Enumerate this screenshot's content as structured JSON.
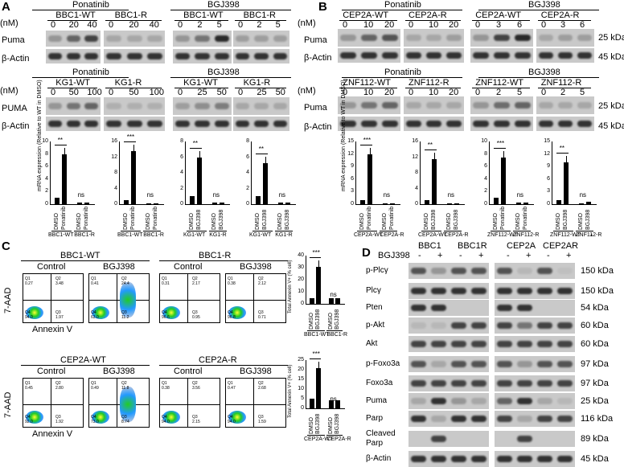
{
  "panels": {
    "a": "A",
    "b": "B",
    "c": "C",
    "d": "D"
  },
  "common": {
    "nM": "(nM)",
    "puma": "Puma",
    "PUMA": "PUMA",
    "actin": "β-Actin",
    "ponatinib": "Ponatinib",
    "bgj398": "BGJ398",
    "kda25": "25 kDa",
    "kda45": "45 kDa",
    "ns": "ns",
    "dmso": "DMSO",
    "mrna_axis": "mRNA expression (Relative to WT in DMSO)",
    "annexin_axis": "Total Annexin V+ (% cell)",
    "aad": "7-AAD",
    "annexin": "Annexin V",
    "control": "Control"
  },
  "A": {
    "row1": {
      "lines": [
        "BBC1-WT",
        "BBC1-R",
        "BBC1-WT",
        "BBC1-R"
      ],
      "doses": [
        [
          "0",
          "20",
          "40"
        ],
        [
          "0",
          "20",
          "40"
        ],
        [
          "0",
          "2",
          "5"
        ],
        [
          "0",
          "2",
          "5"
        ]
      ]
    },
    "row2": {
      "lines": [
        "KG1-WT",
        "KG1-R",
        "KG1-WT",
        "KG1-R"
      ],
      "doses": [
        [
          "0",
          "50",
          "100"
        ],
        [
          "0",
          "50",
          "100"
        ],
        [
          "0",
          "25",
          "50"
        ],
        [
          "0",
          "25",
          "50"
        ]
      ]
    },
    "bars": [
      {
        "ticks": [
          "0",
          "2",
          "4",
          "6",
          "8",
          "10"
        ],
        "drug": "Ponatinib",
        "wt": "BBC1-WT",
        "r": "BBC1-R",
        "sig": "**",
        "values": [
          1,
          8,
          0.2,
          0.2
        ]
      },
      {
        "ticks": [
          "0",
          "4",
          "8",
          "12",
          "16"
        ],
        "drug": "Ponatinib",
        "wt": "BBC1-WT",
        "r": "BBC1-R",
        "sig": "***",
        "values": [
          1,
          13.5,
          0.2,
          0.2
        ]
      },
      {
        "ticks": [
          "0",
          "2",
          "4",
          "6",
          "8"
        ],
        "drug": "BGJ398",
        "wt": "KG1-WT",
        "r": "KG1-R",
        "sig": "**",
        "values": [
          1,
          6,
          0.2,
          0.2
        ]
      },
      {
        "ticks": [
          "0",
          "2",
          "4",
          "6",
          "8"
        ],
        "drug": "BGJ398",
        "wt": "KG1-WT",
        "r": "KG1-R",
        "sig": "**",
        "values": [
          1,
          5.2,
          0.2,
          0.2
        ]
      }
    ]
  },
  "B": {
    "row1": {
      "lines": [
        "CEP2A-WT",
        "CEP2A-R",
        "CEP2A-WT",
        "CEP2A-R"
      ],
      "doses": [
        [
          "0",
          "10",
          "20"
        ],
        [
          "0",
          "10",
          "20"
        ],
        [
          "0",
          "3",
          "6"
        ],
        [
          "0",
          "3",
          "6"
        ]
      ]
    },
    "row2": {
      "lines": [
        "ZNF112-WT",
        "ZNF112-R",
        "ZNF112-WT",
        "ZNF112-R"
      ],
      "doses": [
        [
          "0",
          "10",
          "20"
        ],
        [
          "0",
          "10",
          "20"
        ],
        [
          "0",
          "2",
          "5"
        ],
        [
          "0",
          "2",
          "5"
        ]
      ]
    },
    "bars": [
      {
        "ticks": [
          "0",
          "3",
          "6",
          "9",
          "12",
          "15"
        ],
        "drug": "Ponatinib",
        "wt": "CEP2A-WT",
        "r": "CEP2A-R",
        "sig": "***",
        "values": [
          1,
          12,
          0.2,
          0.2
        ]
      },
      {
        "ticks": [
          "0",
          "4",
          "8",
          "12",
          "16"
        ],
        "drug": "BGJ398",
        "wt": "CEP2A-WT",
        "r": "CEP2A-R",
        "sig": "**",
        "values": [
          1,
          11.5,
          0.2,
          0.2
        ]
      },
      {
        "ticks": [
          "0",
          "2",
          "4",
          "6",
          "8",
          "10"
        ],
        "drug": "Ponatinib",
        "wt": "ZNF112-WT",
        "r": "ZNF112-R",
        "sig": "***",
        "values": [
          1,
          7.5,
          0.3,
          0.3
        ]
      },
      {
        "ticks": [
          "0",
          "3",
          "6",
          "9",
          "12",
          "15"
        ],
        "drug": "BGJ398",
        "wt": "ZNF112-WT",
        "r": "ZNF112-R",
        "sig": "**",
        "sig2": "*",
        "values": [
          1,
          10,
          0.2,
          0.5
        ]
      }
    ]
  },
  "C": {
    "top": {
      "wt": "BBC1-WT",
      "r": "BBC1-R",
      "ticks": [
        "0",
        "10",
        "20",
        "30",
        "40"
      ],
      "sig": "***",
      "values": [
        5,
        31,
        5,
        5
      ],
      "quads": [
        [
          "Q1",
          "0.27",
          "Q2",
          "3.48",
          "Q4",
          "94.0",
          "Q3",
          "1.97"
        ],
        [
          "Q1",
          "0.41",
          "Q2",
          "24.4",
          "Q4",
          "63.0",
          "Q3",
          "11.2"
        ],
        [
          "Q1",
          "0.31",
          "Q2",
          "2.17",
          "Q4",
          "96.6",
          "Q3",
          "0.95"
        ],
        [
          "Q1",
          "0.38",
          "Q2",
          "2.12",
          "Q4",
          "96.8",
          "Q3",
          "0.71"
        ]
      ]
    },
    "bottom": {
      "wt": "CEP2A-WT",
      "r": "CEP2A-R",
      "ticks": [
        "0",
        "5",
        "10",
        "15",
        "20",
        "25"
      ],
      "sig": "***",
      "values": [
        5,
        21,
        4,
        4
      ],
      "quads": [
        [
          "Q1",
          "0.45",
          "Q2",
          "2.80",
          "Q4",
          "92.0",
          "Q3",
          "1.92"
        ],
        [
          "Q1",
          "0.49",
          "Q2",
          "11.8",
          "Q4",
          "73.0",
          "Q3",
          "8.74"
        ],
        [
          "Q1",
          "0.38",
          "Q2",
          "3.56",
          "Q4",
          "94.0",
          "Q3",
          "2.15"
        ],
        [
          "Q1",
          "0.47",
          "Q2",
          "2.68",
          "Q4",
          "94.0",
          "Q3",
          "1.59"
        ]
      ]
    }
  },
  "D": {
    "bgj": "BGJ398",
    "groups": [
      "BBC1",
      "BBC1R",
      "CEP2A",
      "CEP2AR"
    ],
    "signs": [
      "-",
      "+",
      "-",
      "+",
      "-",
      "+",
      "-",
      "+"
    ],
    "rows": [
      {
        "label": "p-Plcγ",
        "kda": "150 kDa"
      },
      {
        "label": "Plcγ",
        "kda": "150 kDa"
      },
      {
        "label": "Pten",
        "kda": "54 kDa"
      },
      {
        "label": "p-Akt",
        "kda": "60 kDa"
      },
      {
        "label": "Akt",
        "kda": "60 kDa"
      },
      {
        "label": "p-Foxo3a",
        "kda": "97 kDa"
      },
      {
        "label": "Foxo3a",
        "kda": "97 kDa"
      },
      {
        "label": "Puma",
        "kda": "25 kDa"
      },
      {
        "label": "Parp",
        "kda": "116 kDa"
      },
      {
        "label": "Cleaved\nParp",
        "kda": "89 kDa"
      },
      {
        "label": "β-Actin",
        "kda": "45 kDa"
      }
    ]
  }
}
